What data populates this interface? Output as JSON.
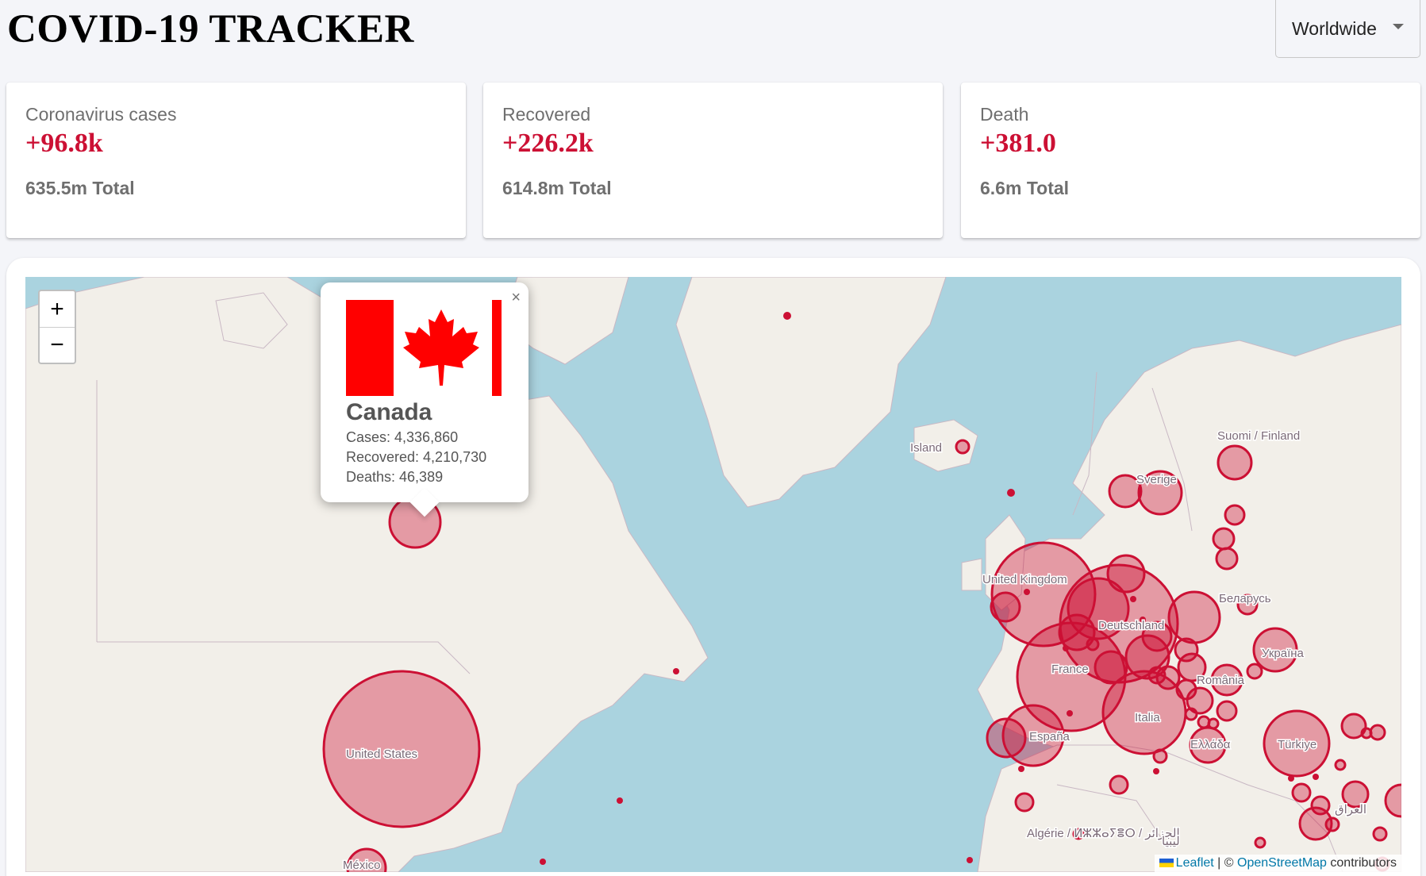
{
  "header": {
    "title": "COVID-19 TRACKER",
    "country_select_value": "Worldwide"
  },
  "stats": [
    {
      "label": "Coronavirus cases",
      "delta": "+96.8k",
      "total": "635.5m Total"
    },
    {
      "label": "Recovered",
      "delta": "+226.2k",
      "total": "614.8m Total"
    },
    {
      "label": "Death",
      "delta": "+381.0",
      "total": "6.6m Total"
    }
  ],
  "map": {
    "zoom_in": "+",
    "zoom_out": "−",
    "place_labels": [
      "United States",
      "Island",
      "Suomi / Finland",
      "Sverige",
      "United Kingdom",
      "Deutschland",
      "France",
      "Italia",
      "España",
      "Беларусь",
      "Україна",
      "România",
      "Ελλάδα",
      "Türkiye",
      "Algérie / ⵍⵣⵣⴰⵢⴻⵔ / الجزائر",
      "México",
      "ليبيا",
      "العراق"
    ],
    "popup": {
      "close": "×",
      "country": "Canada",
      "cases": "Cases: 4,336,860",
      "recovered": "Recovered: 4,210,730",
      "deaths": "Deaths: 46,389"
    },
    "attribution": {
      "leaflet": "Leaflet",
      "separator": " | © ",
      "osm": "OpenStreetMap",
      "suffix": " contributors"
    },
    "colors": {
      "accent": "#cc1034",
      "water": "#aad3df",
      "land": "#f2efe9"
    }
  }
}
